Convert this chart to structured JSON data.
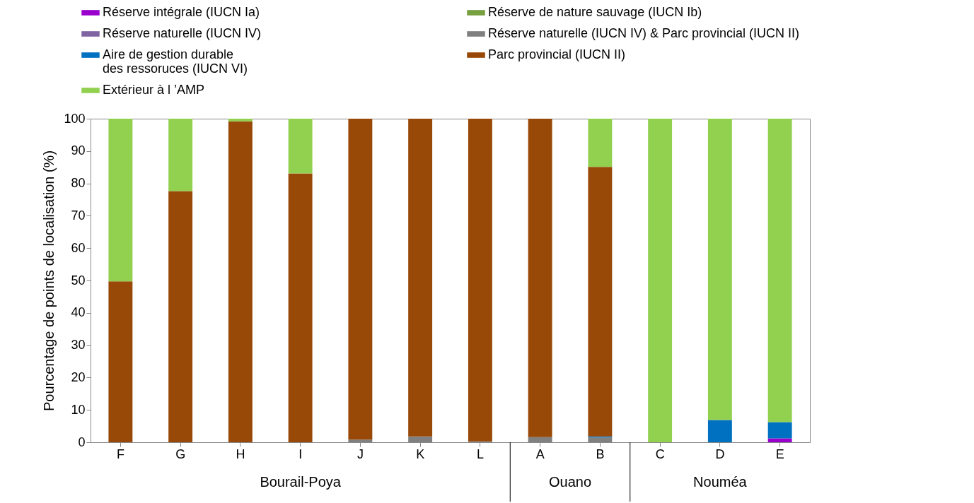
{
  "chart_data": {
    "type": "bar",
    "stacked": true,
    "ylabel": "Pourcentage de points de localisation (%)",
    "ylim": [
      0,
      100
    ],
    "yticks": [
      0,
      10,
      20,
      30,
      40,
      50,
      60,
      70,
      80,
      90,
      100
    ],
    "grid": false,
    "legend": "top left",
    "categories": [
      "F",
      "G",
      "H",
      "I",
      "J",
      "K",
      "L",
      "A",
      "B",
      "C",
      "D",
      "E"
    ],
    "series": [
      {
        "name": "Réserve intégrale (IUCN Ia)",
        "color": "#9900cc",
        "values": [
          0,
          0,
          0,
          0,
          0,
          0,
          0,
          0,
          0,
          0,
          0,
          1.2
        ]
      },
      {
        "name": "Réserve de nature sauvage (IUCN Ib)",
        "color": "#77a040",
        "values": [
          0,
          0,
          0,
          0,
          0,
          0,
          0,
          0,
          0,
          0,
          0,
          0
        ]
      },
      {
        "name": "Réserve naturelle (IUCN IV)",
        "color": "#8064a2",
        "values": [
          0,
          0,
          0,
          0,
          0,
          0,
          0,
          0,
          0,
          0,
          0,
          0
        ]
      },
      {
        "name": "Réserve naturelle (IUCN IV) & Parc provincial (IUCN II)",
        "color": "#808080",
        "values": [
          0,
          0,
          0,
          0,
          0.8,
          1.8,
          0.3,
          1.6,
          1.5,
          0,
          0,
          0
        ]
      },
      {
        "name": "Aire de gestion durable\ndes ressoruces (IUCN VI)",
        "color": "#0070c0",
        "values": [
          0,
          0,
          0,
          0,
          0,
          0,
          0,
          0,
          0.3,
          0,
          6.9,
          5.0
        ]
      },
      {
        "name": "Parc provincial (IUCN II)",
        "color": "#984807",
        "values": [
          49.7,
          77.6,
          99.2,
          83.1,
          99.2,
          98.2,
          99.7,
          98.4,
          83.3,
          0,
          0,
          0
        ]
      },
      {
        "name": "Extérieur à l ’AMP",
        "color": "#92d050",
        "values": [
          50.3,
          22.4,
          0.8,
          16.9,
          0,
          0,
          0,
          0,
          14.9,
          100,
          93.1,
          93.8
        ]
      }
    ],
    "annotations": [
      "Bourail-Poya",
      "Ouano",
      "Nouméa"
    ]
  }
}
